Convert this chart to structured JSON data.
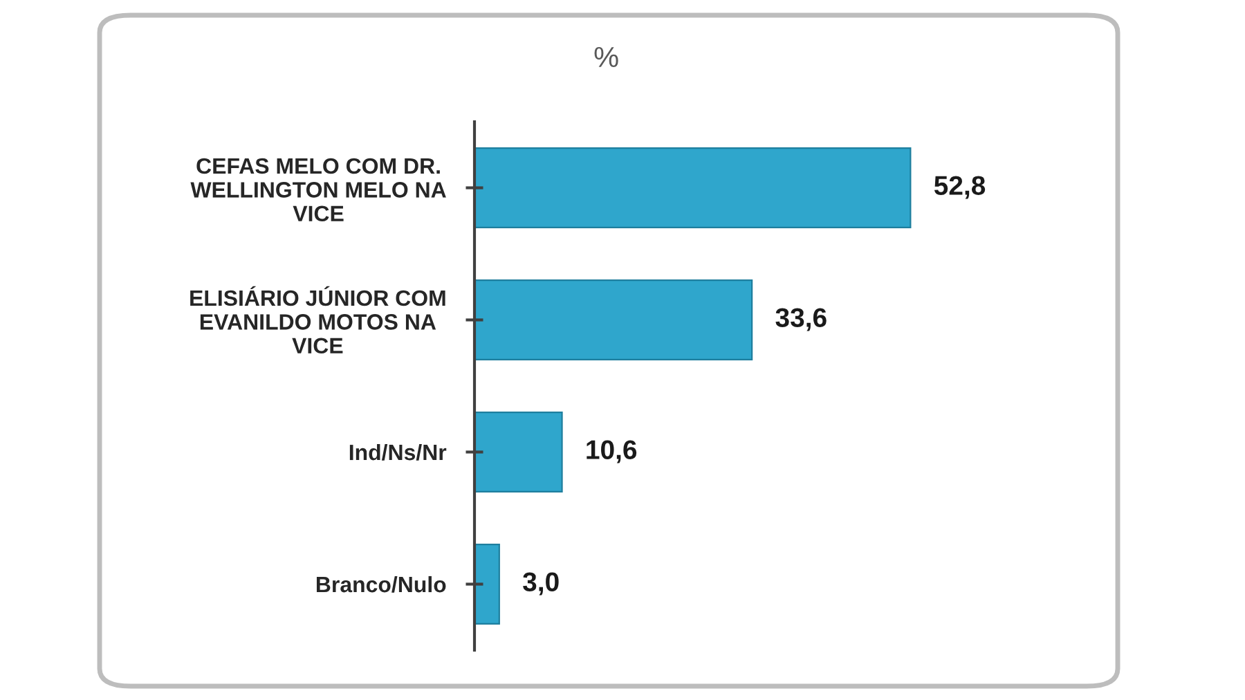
{
  "chart_data": {
    "type": "bar",
    "orientation": "horizontal",
    "title": "%",
    "categories": [
      "CEFAS MELO COM DR.\nWELLINGTON MELO NA\nVICE",
      "ELISIÁRIO JÚNIOR COM\nEVANILDO MOTOS NA\nVICE",
      "Ind/Ns/Nr",
      "Branco/Nulo"
    ],
    "values": [
      52.8,
      33.6,
      10.6,
      3.0
    ],
    "value_labels": [
      "52,8",
      "33,6",
      "10,6",
      "3,0"
    ],
    "color": "#2fa6cc",
    "tick_labels": "y"
  }
}
